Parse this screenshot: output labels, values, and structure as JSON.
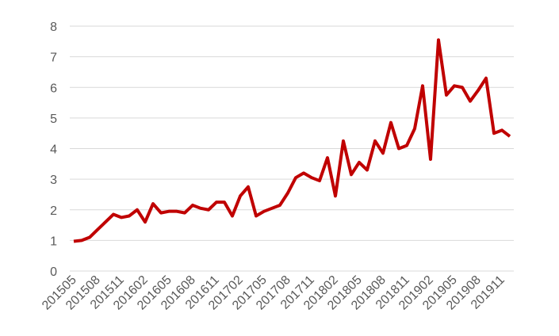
{
  "chart_data": {
    "type": "line",
    "categories": [
      "201505",
      null,
      null,
      "201508",
      null,
      null,
      "201511",
      null,
      null,
      "201602",
      null,
      null,
      "201605",
      null,
      null,
      "201608",
      null,
      null,
      "201611",
      null,
      null,
      "201702",
      null,
      null,
      "201705",
      null,
      null,
      "201708",
      null,
      null,
      "201711",
      null,
      null,
      "201802",
      null,
      null,
      "201805",
      null,
      null,
      "201808",
      null,
      null,
      "201811",
      null,
      null,
      "201902",
      null,
      null,
      "201905",
      null,
      null,
      "201908",
      null,
      null,
      "201911",
      null
    ],
    "series": [
      {
        "color": "#c00000",
        "values": [
          0.97,
          1.0,
          1.1,
          1.35,
          1.6,
          1.85,
          1.75,
          1.8,
          2.0,
          1.6,
          2.2,
          1.9,
          1.95,
          1.95,
          1.9,
          2.15,
          2.05,
          2.0,
          2.25,
          2.25,
          1.8,
          2.45,
          2.75,
          1.8,
          1.95,
          2.05,
          2.15,
          2.55,
          3.05,
          3.2,
          3.05,
          2.95,
          3.7,
          2.45,
          4.25,
          3.15,
          3.55,
          3.3,
          4.25,
          3.85,
          4.85,
          4.0,
          4.1,
          4.65,
          6.05,
          3.65,
          7.55,
          5.75,
          6.05,
          6.0,
          5.55,
          5.9,
          6.3,
          4.5,
          4.6,
          4.4
        ]
      }
    ],
    "ylim": [
      0,
      8
    ],
    "yticks": [
      0,
      1,
      2,
      3,
      4,
      5,
      6,
      7,
      8
    ],
    "grid": true
  }
}
